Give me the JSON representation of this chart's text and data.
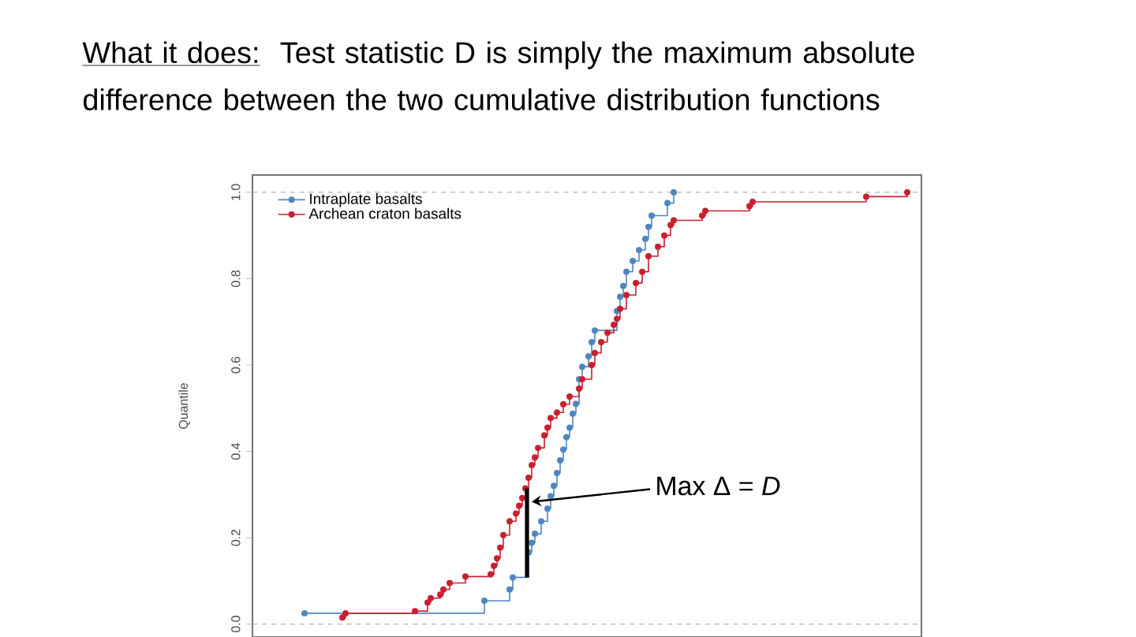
{
  "chart_data": {
    "type": "step",
    "title": "What it does:",
    "subtitle": "Test statistic D is simply the maximum absolute difference between the two cumulative distribution functions",
    "ylabel": "Quantile",
    "categories": [
      null,
      null,
      null,
      null,
      null,
      null,
      null,
      null,
      null,
      null,
      null,
      null,
      null,
      null,
      null,
      null,
      null,
      null,
      null,
      null,
      null,
      null,
      null,
      null,
      null,
      null,
      null,
      null,
      null,
      null,
      null,
      null,
      null,
      null,
      null,
      null,
      null,
      null,
      null,
      null,
      null,
      null,
      null,
      null,
      null,
      null,
      null,
      null,
      null,
      null,
      null,
      null,
      null,
      null,
      null,
      null,
      null,
      null,
      null,
      null,
      null,
      null,
      null,
      null,
      null,
      null,
      null,
      null,
      null,
      null,
      null,
      null,
      null,
      null,
      null,
      null,
      null,
      null,
      null,
      null,
      null,
      null,
      null,
      null,
      null,
      null,
      null,
      null,
      null,
      null,
      null,
      null,
      null,
      null,
      null,
      null,
      null,
      null,
      null,
      null,
      null,
      null,
      null,
      null,
      null,
      null,
      null,
      null,
      null,
      null,
      null,
      null,
      null,
      null,
      null,
      null,
      null,
      null,
      null,
      null,
      null,
      null,
      null,
      null,
      null,
      null,
      null,
      null,
      null,
      null,
      null,
      null,
      null,
      null,
      null,
      null,
      null,
      null,
      null,
      null,
      null,
      null,
      null,
      null,
      null,
      null,
      null,
      null,
      null,
      null,
      null,
      null,
      null,
      null,
      null,
      null,
      null,
      null,
      null,
      null,
      null,
      null,
      null,
      null,
      null,
      null,
      null,
      null,
      null,
      null,
      null,
      null,
      null,
      null,
      null,
      null,
      null,
      null,
      null,
      null,
      null,
      null,
      null,
      null,
      null,
      null,
      null,
      null,
      null,
      null,
      null,
      null,
      null,
      null,
      null,
      null,
      null,
      null,
      null,
      null,
      null,
      null,
      null,
      null,
      null,
      null,
      null,
      null,
      null,
      null,
      null,
      null
    ],
    "ylim": [
      -0.03,
      1.04
    ],
    "yticks": [
      {
        "value": 0,
        "label": "0.0"
      },
      {
        "value": 0.2,
        "label": "0.2"
      },
      {
        "value": 0.4,
        "label": "0.4"
      },
      {
        "value": 0.6,
        "label": "0.6"
      },
      {
        "value": 0.8,
        "label": "0.8"
      },
      {
        "value": 1,
        "label": "1.0"
      }
    ],
    "tick_labels": "y",
    "legend": "top left",
    "marker": "circle",
    "series": [
      {
        "name": "Intraplate basalts",
        "color": "#4f86c0",
        "values": [
          null,
          null,
          null,
          null,
          null,
          null,
          null,
          null,
          null,
          null,
          null,
          null,
          null,
          null,
          null,
          null,
          0.025,
          null,
          null,
          null,
          null,
          null,
          null,
          null,
          null,
          null,
          null,
          null,
          null,
          null,
          null,
          null,
          null,
          null,
          null,
          null,
          null,
          null,
          null,
          null,
          null,
          null,
          null,
          null,
          null,
          null,
          null,
          null,
          null,
          null,
          null,
          null,
          null,
          null,
          null,
          null,
          null,
          null,
          null,
          null,
          null,
          null,
          null,
          null,
          null,
          null,
          null,
          null,
          null,
          null,
          null,
          null,
          null,
          0.054,
          null,
          null,
          null,
          null,
          null,
          null,
          null,
          0.08,
          0.108,
          null,
          null,
          null,
          null,
          0.166,
          0.188,
          0.209,
          null,
          0.238,
          null,
          0.267,
          0.296,
          0.32,
          0.35,
          0.379,
          0.404,
          0.433,
          0.455,
          0.487,
          0.51,
          0.567,
          0.596,
          null,
          0.62,
          0.653,
          0.68,
          null,
          null,
          null,
          null,
          null,
          null,
          0.725,
          0.758,
          0.783,
          0.816,
          null,
          0.841,
          null,
          0.866,
          null,
          0.892,
          0.92,
          0.946,
          null,
          null,
          null,
          null,
          0.975,
          null,
          1.0,
          null,
          null,
          null,
          null,
          null,
          null,
          null,
          null,
          null,
          null,
          null,
          null,
          null,
          null,
          null,
          null,
          null,
          null,
          null,
          null,
          null,
          null,
          null,
          null,
          null,
          null,
          null,
          null,
          null,
          null,
          null,
          null,
          null,
          null,
          null,
          null,
          null,
          null,
          null,
          null,
          null,
          null,
          null,
          null,
          null,
          null,
          null,
          null,
          null,
          null,
          null,
          null,
          null,
          null,
          null,
          null,
          null,
          null,
          null,
          null,
          null,
          null,
          null,
          null,
          null,
          null,
          null,
          null,
          null,
          null,
          null,
          null,
          null,
          null,
          null,
          null,
          null,
          null
        ]
      },
      {
        "name": "Archean craton basalts",
        "color": "#c8202f",
        "values": [
          null,
          null,
          null,
          null,
          null,
          null,
          null,
          null,
          null,
          null,
          null,
          null,
          null,
          null,
          null,
          null,
          null,
          null,
          null,
          null,
          null,
          null,
          null,
          null,
          null,
          null,
          null,
          null,
          0.015,
          0.025,
          null,
          null,
          null,
          null,
          null,
          null,
          null,
          null,
          null,
          null,
          null,
          null,
          null,
          null,
          null,
          null,
          null,
          null,
          null,
          null,
          null,
          0.03,
          null,
          null,
          null,
          0.05,
          0.06,
          null,
          null,
          0.068,
          0.08,
          null,
          0.095,
          null,
          null,
          null,
          null,
          0.11,
          null,
          null,
          null,
          null,
          null,
          null,
          null,
          0.115,
          0.135,
          0.152,
          0.177,
          0.206,
          null,
          0.238,
          null,
          0.256,
          0.274,
          0.292,
          0.314,
          0.339,
          0.368,
          0.386,
          0.408,
          null,
          0.437,
          0.455,
          0.477,
          null,
          0.49,
          null,
          0.509,
          null,
          0.527,
          null,
          null,
          0.545,
          0.567,
          null,
          null,
          0.6,
          0.628,
          null,
          0.653,
          null,
          0.675,
          null,
          0.693,
          0.707,
          0.73,
          null,
          0.762,
          null,
          null,
          0.79,
          null,
          0.816,
          null,
          0.852,
          null,
          null,
          0.874,
          null,
          0.9,
          null,
          0.924,
          0.935,
          null,
          null,
          null,
          null,
          null,
          null,
          null,
          null,
          0.946,
          0.957,
          null,
          null,
          null,
          null,
          null,
          null,
          null,
          null,
          null,
          null,
          null,
          null,
          null,
          0.968,
          0.978,
          null,
          null,
          null,
          null,
          null,
          null,
          null,
          null,
          null,
          null,
          null,
          null,
          null,
          null,
          null,
          null,
          null,
          null,
          null,
          null,
          null,
          null,
          null,
          null,
          null,
          null,
          null,
          null,
          null,
          null,
          null,
          null,
          null,
          null,
          null,
          0.99,
          null,
          null,
          null,
          null,
          null,
          null,
          null,
          null,
          null,
          null,
          null,
          null,
          1.0,
          null,
          null,
          null,
          null
        ]
      }
    ],
    "ref_lines": [
      {
        "axis": "y",
        "value": 0,
        "color": "#b0b0b0",
        "line_style": "dashed"
      },
      {
        "axis": "y",
        "value": 1,
        "color": "#b0b0b0",
        "line_style": "dashed"
      }
    ],
    "annotations": [
      "Max Δ = *D*"
    ]
  }
}
